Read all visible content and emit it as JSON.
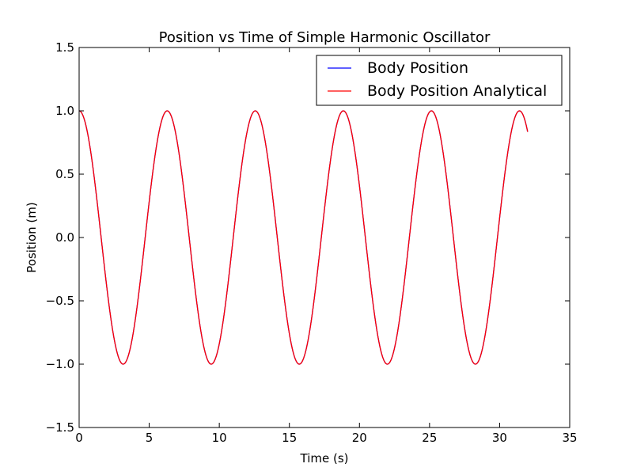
{
  "chart_data": {
    "type": "line",
    "title": "Position vs Time of Simple Harmonic Oscillator",
    "xlabel": "Time (s)",
    "ylabel": "Position (m)",
    "xlim": [
      0,
      35
    ],
    "ylim": [
      -1.5,
      1.5
    ],
    "x_ticks": [
      0,
      5,
      10,
      15,
      20,
      25,
      30,
      35
    ],
    "x_tick_labels": [
      "0",
      "5",
      "10",
      "15",
      "20",
      "25",
      "30",
      "35"
    ],
    "y_ticks": [
      1.5,
      1.0,
      0.5,
      0.0,
      -0.5,
      -1.0,
      -1.5
    ],
    "y_tick_labels": [
      "1.5",
      "1.0",
      "0.5",
      "0.0",
      "−0.5",
      "−1.0",
      "−1.5"
    ],
    "grid": false,
    "legend_position": "top-right",
    "series": [
      {
        "name": "Body Position",
        "color": "#0000ff",
        "function": "cos",
        "amplitude": 1.0,
        "angular_frequency": 1.0,
        "x_start": 0,
        "x_end": 32.0
      },
      {
        "name": "Body Position Analytical",
        "color": "#ff0000",
        "function": "cos",
        "amplitude": 1.0,
        "angular_frequency": 1.0,
        "x_start": 0,
        "x_end": 32.0
      }
    ]
  }
}
